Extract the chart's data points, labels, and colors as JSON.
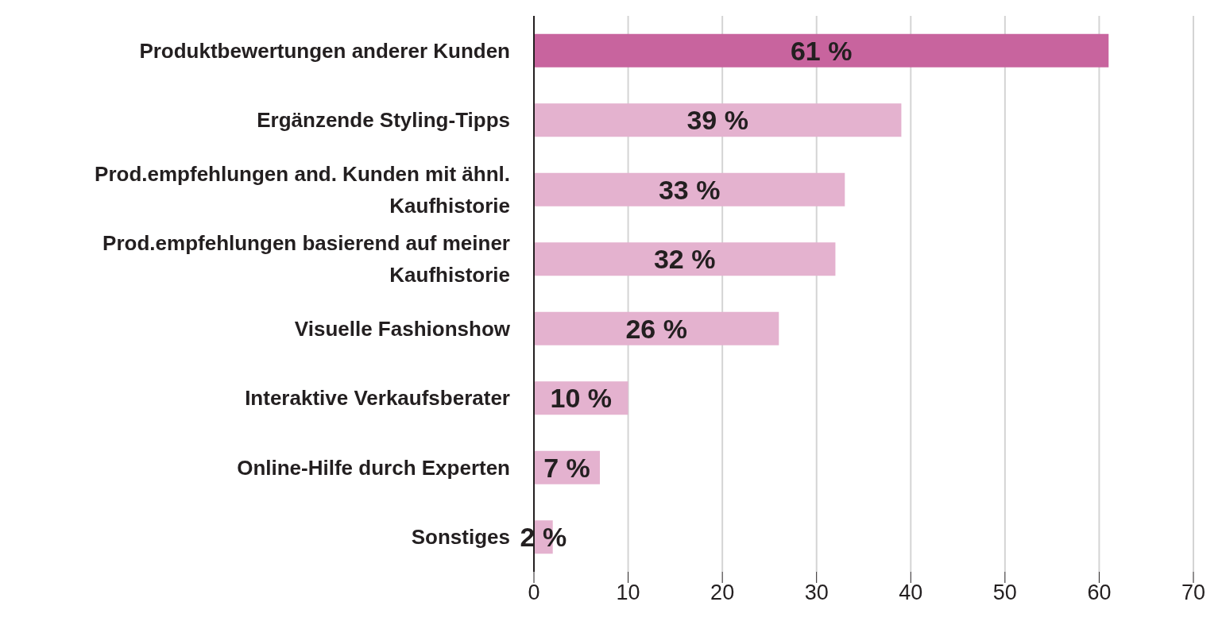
{
  "chart_data": {
    "type": "bar",
    "orientation": "horizontal",
    "categories": [
      "Produktbewertungen anderer Kunden",
      "Ergänzende Styling-Tipps",
      "Prod.empfehlungen and. Kunden mit ähnl. Kaufhistorie",
      "Prod.empfehlungen basierend auf meiner Kaufhistorie",
      "Visuelle Fashionshow",
      "Interaktive Verkaufsberater",
      "Online-Hilfe durch Experten",
      "Sonstiges"
    ],
    "values": [
      61,
      39,
      33,
      32,
      26,
      10,
      7,
      2
    ],
    "value_labels": [
      "61 %",
      "39 %",
      "33 %",
      "32 %",
      "26 %",
      "10 %",
      "7 %",
      "2 %"
    ],
    "colors": [
      "#c8649e",
      "#e4b2cf",
      "#e4b2cf",
      "#e4b2cf",
      "#e4b2cf",
      "#e4b2cf",
      "#e4b2cf",
      "#e4b2cf"
    ],
    "xlim": [
      0,
      70
    ],
    "xticks": [
      0,
      10,
      20,
      30,
      40,
      50,
      60,
      70
    ],
    "grid": "x"
  }
}
